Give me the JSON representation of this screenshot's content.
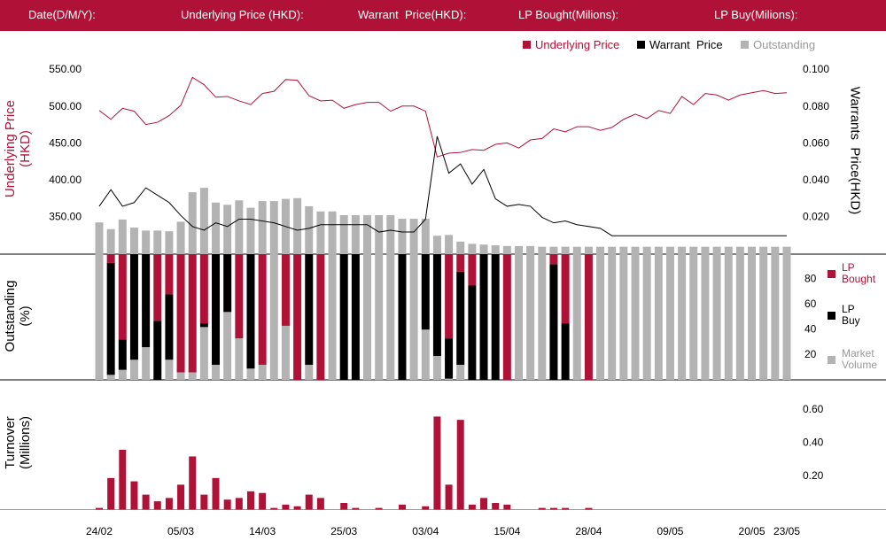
{
  "header": {
    "labels": [
      "Date(D/M/Y):",
      "Underlying Price (HKD):",
      "Warrant  Price(HKD):",
      "LP Bought(Milions):",
      "LP Buy(Milions):"
    ]
  },
  "chart_data": [
    {
      "type": "line",
      "ylabel": "Underlying Price (HKD)",
      "y2label": "Warrants  Price(HKD)",
      "ylim": [
        300,
        550
      ],
      "yticks": [
        {
          "value": 550,
          "label": "550.00"
        },
        {
          "value": 500,
          "label": "500.00"
        },
        {
          "value": 450,
          "label": "450.00"
        },
        {
          "value": 400,
          "label": "400.00"
        },
        {
          "value": 350,
          "label": "350.00"
        }
      ],
      "y2lim": [
        0,
        0.1
      ],
      "y2ticks": [
        {
          "value": 0.1,
          "label": "0.100"
        },
        {
          "value": 0.08,
          "label": "0.080"
        },
        {
          "value": 0.06,
          "label": "0.060"
        },
        {
          "value": 0.04,
          "label": "0.040"
        },
        {
          "value": 0.02,
          "label": "0.020"
        }
      ],
      "series": [
        {
          "name": "Underlying Price",
          "color": "#b01237",
          "values": [
            495,
            483,
            498,
            494,
            476,
            479,
            488,
            502,
            540,
            530,
            513,
            514,
            508,
            503,
            518,
            521,
            537,
            536,
            515,
            508,
            509,
            498,
            503,
            506,
            506,
            494,
            501,
            501,
            494,
            432,
            437,
            438,
            442,
            441,
            449,
            451,
            444,
            455,
            457,
            470,
            466,
            473,
            473,
            468,
            472,
            483,
            490,
            484,
            495,
            491,
            514,
            503,
            518,
            516,
            509,
            516,
            519,
            522,
            518,
            519
          ]
        },
        {
          "name": "Warrant  Price",
          "color": "#000000",
          "axis": "y2",
          "values": [
            0.026,
            0.035,
            0.026,
            0.028,
            0.036,
            0.032,
            0.028,
            0.021,
            0.015,
            0.013,
            0.017,
            0.015,
            0.019,
            0.019,
            0.018,
            0.017,
            0.015,
            0.013,
            0.014,
            0.016,
            0.016,
            0.016,
            0.016,
            0.016,
            0.012,
            0.013,
            0.012,
            0.012,
            0.019,
            0.064,
            0.044,
            0.049,
            0.038,
            0.046,
            0.03,
            0.026,
            0.027,
            0.026,
            0.02,
            0.017,
            0.018,
            0.016,
            0.015,
            0.014,
            0.01,
            0.01,
            0.01,
            0.01,
            0.01,
            0.01,
            0.01,
            0.01,
            0.01,
            0.01,
            0.01,
            0.01,
            0.01,
            0.01,
            0.01,
            0.01
          ]
        },
        {
          "name": "Outstanding",
          "color": "#b3b3b3",
          "type": "bar",
          "values": [
            343,
            334,
            347,
            336,
            332,
            332,
            331,
            344,
            384,
            390,
            370,
            367,
            373,
            363,
            372,
            372,
            375,
            376,
            365,
            358,
            358,
            353,
            353,
            353,
            353,
            353,
            348,
            348,
            348,
            325,
            326,
            317,
            314,
            313,
            312,
            311,
            311,
            311,
            310,
            310,
            310,
            310,
            310,
            310,
            310,
            310,
            310,
            310,
            310,
            310,
            310,
            310,
            310,
            310,
            310,
            310,
            310,
            310,
            310,
            310
          ]
        }
      ]
    },
    {
      "type": "stacked_bar",
      "ylabel": "Outstanding (%)",
      "ylim": [
        0,
        100
      ],
      "yticks": [
        80,
        60,
        40,
        20
      ],
      "series": [
        {
          "name": "LP Bought",
          "color": "#b01237",
          "values": [
            0,
            7,
            68,
            0,
            0,
            53,
            32,
            94,
            94,
            55,
            0,
            0,
            67,
            0,
            88,
            0,
            57,
            100,
            0,
            100,
            0,
            0,
            0,
            0,
            0,
            0,
            0,
            0,
            0,
            0,
            67,
            14,
            25,
            0,
            0,
            100,
            0,
            0,
            0,
            8,
            55,
            0,
            100,
            0,
            0,
            0,
            0,
            0,
            0,
            0,
            0,
            0,
            0,
            0,
            0,
            0,
            0,
            0,
            0,
            0
          ]
        },
        {
          "name": "LP Buy",
          "color": "#000000",
          "values": [
            0,
            89,
            24,
            84,
            74,
            47,
            52,
            0,
            0,
            3,
            88,
            46,
            0,
            91,
            0,
            0,
            0,
            0,
            88,
            0,
            0,
            100,
            100,
            0,
            0,
            0,
            100,
            0,
            60,
            81,
            32,
            74,
            75,
            100,
            100,
            0,
            0,
            0,
            0,
            92,
            45,
            0,
            0,
            0,
            0,
            0,
            0,
            0,
            0,
            0,
            0,
            0,
            0,
            0,
            0,
            0,
            0,
            0,
            0,
            0
          ]
        },
        {
          "name": "Market Volume",
          "color": "#b3b3b3",
          "values": [
            100,
            4,
            8,
            16,
            26,
            0,
            16,
            6,
            6,
            42,
            12,
            54,
            33,
            9,
            12,
            100,
            43,
            0,
            12,
            0,
            100,
            0,
            0,
            100,
            100,
            100,
            0,
            100,
            40,
            19,
            1,
            12,
            0,
            0,
            0,
            0,
            100,
            100,
            100,
            0,
            0,
            100,
            0,
            100,
            100,
            100,
            100,
            100,
            100,
            100,
            100,
            100,
            100,
            100,
            100,
            100,
            100,
            100,
            100,
            100
          ]
        }
      ]
    },
    {
      "type": "bar",
      "ylabel": "Turnover (Millions)",
      "color": "#b01237",
      "ylim": [
        0,
        0.77
      ],
      "yticks": [
        {
          "value": 0.6,
          "label": "0.60"
        },
        {
          "value": 0.4,
          "label": "0.40"
        },
        {
          "value": 0.2,
          "label": "0.20"
        }
      ],
      "categories": [
        "24/02",
        null,
        null,
        null,
        null,
        null,
        null,
        "05/03",
        null,
        null,
        null,
        null,
        null,
        null,
        "14/03",
        null,
        null,
        null,
        null,
        null,
        null,
        "25/03",
        null,
        null,
        null,
        null,
        null,
        null,
        "03/04",
        null,
        null,
        null,
        null,
        null,
        null,
        "15/04",
        null,
        null,
        null,
        null,
        null,
        null,
        "28/04",
        null,
        null,
        null,
        null,
        null,
        null,
        "09/05",
        null,
        null,
        null,
        null,
        null,
        null,
        "20/05",
        null,
        null,
        "23/05"
      ],
      "values": [
        0.01,
        0.19,
        0.36,
        0.17,
        0.09,
        0.05,
        0.07,
        0.15,
        0.32,
        0.09,
        0.19,
        0.06,
        0.07,
        0.11,
        0.1,
        0.01,
        0.03,
        0.02,
        0.09,
        0.07,
        0,
        0.04,
        0.01,
        0,
        0.01,
        0,
        0.03,
        0,
        0.02,
        0.56,
        0.15,
        0.54,
        0.03,
        0.07,
        0.04,
        0.03,
        0,
        0,
        0.01,
        0.01,
        0.01,
        0,
        0.01,
        0,
        0,
        0,
        0,
        0,
        0,
        0,
        0,
        0,
        0,
        0,
        0,
        0,
        0,
        0,
        0,
        0
      ]
    }
  ]
}
